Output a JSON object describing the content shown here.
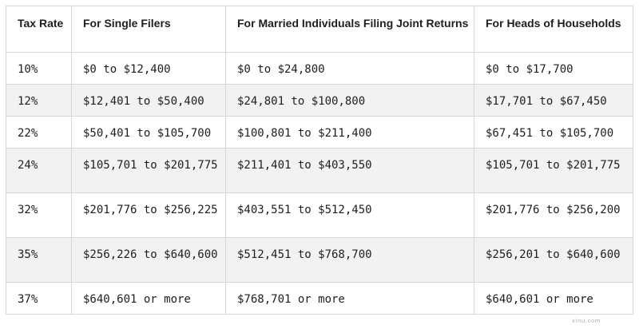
{
  "table": {
    "headers": [
      "Tax Rate",
      "For Single Filers",
      "For Married Individuals Filing Joint Returns",
      "For Heads of Households"
    ],
    "rows": [
      [
        "10%",
        "$0 to $12,400",
        "$0 to $24,800",
        "$0 to $17,700"
      ],
      [
        "12%",
        "$12,401 to $50,400",
        "$24,801 to $100,800",
        "$17,701 to $67,450"
      ],
      [
        "22%",
        "$50,401 to $105,700",
        "$100,801 to $211,400",
        "$67,451 to $105,700"
      ],
      [
        "24%",
        "$105,701 to $201,775",
        "$211,401 to $403,550",
        "$105,701 to $201,775"
      ],
      [
        "32%",
        "$201,776 to $256,225",
        "$403,551 to $512,450",
        "$201,776 to $256,200"
      ],
      [
        "35%",
        "$256,226 to $640,600",
        "$512,451 to $768,700",
        "$256,201 to $640,600"
      ],
      [
        "37%",
        "$640,601 or more",
        "$768,701 or more",
        "$640,601 or more"
      ]
    ]
  },
  "watermark": "xinu.com"
}
